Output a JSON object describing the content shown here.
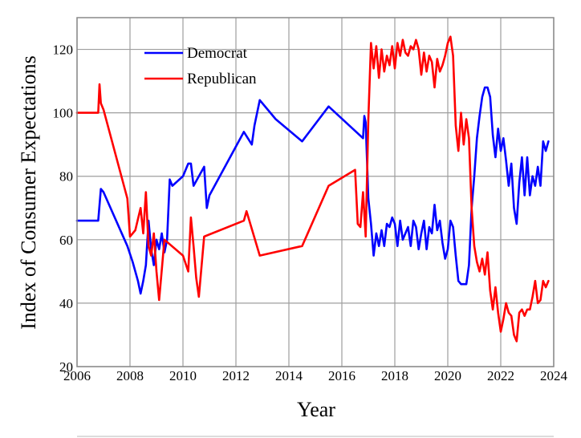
{
  "chart_data": {
    "type": "line",
    "xlabel": "Year",
    "ylabel": "Index of Consumer Expectations",
    "xlim": [
      2006,
      2024
    ],
    "ylim": [
      20,
      130
    ],
    "xticks": [
      2006,
      2008,
      2010,
      2012,
      2014,
      2016,
      2018,
      2020,
      2022,
      2024
    ],
    "yticks": [
      20,
      40,
      60,
      80,
      100,
      120
    ],
    "grid": true,
    "legend_position": "top-left",
    "series": [
      {
        "name": "Democrat",
        "color": "#0000ff",
        "points": [
          [
            2006.0,
            66
          ],
          [
            2006.8,
            66
          ],
          [
            2006.9,
            76
          ],
          [
            2007.0,
            75
          ],
          [
            2007.9,
            58
          ],
          [
            2008.1,
            53
          ],
          [
            2008.3,
            47
          ],
          [
            2008.4,
            43
          ],
          [
            2008.5,
            47
          ],
          [
            2008.6,
            52
          ],
          [
            2008.7,
            66
          ],
          [
            2008.8,
            57
          ],
          [
            2008.9,
            52
          ],
          [
            2009.0,
            60
          ],
          [
            2009.1,
            57
          ],
          [
            2009.2,
            62
          ],
          [
            2009.3,
            56
          ],
          [
            2009.4,
            60
          ],
          [
            2009.5,
            79
          ],
          [
            2009.6,
            77
          ],
          [
            2010.0,
            80
          ],
          [
            2010.2,
            84
          ],
          [
            2010.3,
            84
          ],
          [
            2010.4,
            77
          ],
          [
            2010.6,
            80
          ],
          [
            2010.8,
            83
          ],
          [
            2010.9,
            70
          ],
          [
            2011.0,
            74
          ],
          [
            2012.3,
            94
          ],
          [
            2012.6,
            90
          ],
          [
            2012.7,
            96
          ],
          [
            2012.9,
            104
          ],
          [
            2013.5,
            98
          ],
          [
            2014.5,
            91
          ],
          [
            2015.5,
            102
          ],
          [
            2016.8,
            92
          ],
          [
            2016.85,
            99
          ],
          [
            2016.9,
            97
          ],
          [
            2017.0,
            73
          ],
          [
            2017.1,
            65
          ],
          [
            2017.2,
            55
          ],
          [
            2017.3,
            62
          ],
          [
            2017.4,
            58
          ],
          [
            2017.5,
            63
          ],
          [
            2017.6,
            58
          ],
          [
            2017.7,
            65
          ],
          [
            2017.8,
            64
          ],
          [
            2017.9,
            67
          ],
          [
            2018.0,
            65
          ],
          [
            2018.1,
            58
          ],
          [
            2018.2,
            66
          ],
          [
            2018.3,
            60
          ],
          [
            2018.4,
            62
          ],
          [
            2018.5,
            64
          ],
          [
            2018.6,
            58
          ],
          [
            2018.7,
            66
          ],
          [
            2018.8,
            64
          ],
          [
            2018.9,
            57
          ],
          [
            2019.0,
            62
          ],
          [
            2019.1,
            66
          ],
          [
            2019.2,
            57
          ],
          [
            2019.3,
            64
          ],
          [
            2019.4,
            62
          ],
          [
            2019.5,
            71
          ],
          [
            2019.6,
            63
          ],
          [
            2019.7,
            66
          ],
          [
            2019.8,
            59
          ],
          [
            2019.9,
            54
          ],
          [
            2020.0,
            57
          ],
          [
            2020.1,
            66
          ],
          [
            2020.2,
            64
          ],
          [
            2020.3,
            55
          ],
          [
            2020.4,
            47
          ],
          [
            2020.5,
            46
          ],
          [
            2020.6,
            46
          ],
          [
            2020.7,
            46
          ],
          [
            2020.8,
            52
          ],
          [
            2020.9,
            70
          ],
          [
            2021.0,
            80
          ],
          [
            2021.1,
            92
          ],
          [
            2021.2,
            99
          ],
          [
            2021.3,
            105
          ],
          [
            2021.4,
            108
          ],
          [
            2021.5,
            108
          ],
          [
            2021.6,
            105
          ],
          [
            2021.7,
            93
          ],
          [
            2021.8,
            86
          ],
          [
            2021.9,
            95
          ],
          [
            2022.0,
            88
          ],
          [
            2022.1,
            92
          ],
          [
            2022.2,
            85
          ],
          [
            2022.3,
            77
          ],
          [
            2022.4,
            84
          ],
          [
            2022.5,
            70
          ],
          [
            2022.6,
            65
          ],
          [
            2022.7,
            78
          ],
          [
            2022.8,
            86
          ],
          [
            2022.9,
            74
          ],
          [
            2023.0,
            86
          ],
          [
            2023.1,
            74
          ],
          [
            2023.2,
            80
          ],
          [
            2023.3,
            77
          ],
          [
            2023.4,
            83
          ],
          [
            2023.5,
            77
          ],
          [
            2023.6,
            91
          ],
          [
            2023.7,
            88
          ],
          [
            2023.8,
            91
          ]
        ]
      },
      {
        "name": "Republican",
        "color": "#ff0000",
        "points": [
          [
            2006.0,
            100
          ],
          [
            2006.8,
            100
          ],
          [
            2006.85,
            109
          ],
          [
            2006.9,
            103
          ],
          [
            2007.0,
            101
          ],
          [
            2007.9,
            73
          ],
          [
            2008.0,
            61
          ],
          [
            2008.2,
            63
          ],
          [
            2008.4,
            70
          ],
          [
            2008.5,
            62
          ],
          [
            2008.6,
            75
          ],
          [
            2008.7,
            58
          ],
          [
            2008.8,
            55
          ],
          [
            2008.9,
            62
          ],
          [
            2009.0,
            50
          ],
          [
            2009.1,
            41
          ],
          [
            2009.3,
            60
          ],
          [
            2010.0,
            55
          ],
          [
            2010.2,
            50
          ],
          [
            2010.3,
            67
          ],
          [
            2010.4,
            58
          ],
          [
            2010.5,
            48
          ],
          [
            2010.6,
            42
          ],
          [
            2010.8,
            61
          ],
          [
            2012.3,
            66
          ],
          [
            2012.4,
            69
          ],
          [
            2012.9,
            55
          ],
          [
            2014.5,
            58
          ],
          [
            2015.5,
            77
          ],
          [
            2016.5,
            82
          ],
          [
            2016.6,
            65
          ],
          [
            2016.7,
            64
          ],
          [
            2016.8,
            75
          ],
          [
            2016.9,
            61
          ],
          [
            2017.0,
            98
          ],
          [
            2017.1,
            122
          ],
          [
            2017.2,
            114
          ],
          [
            2017.3,
            121
          ],
          [
            2017.4,
            111
          ],
          [
            2017.5,
            120
          ],
          [
            2017.6,
            113
          ],
          [
            2017.7,
            118
          ],
          [
            2017.8,
            115
          ],
          [
            2017.9,
            121
          ],
          [
            2018.0,
            114
          ],
          [
            2018.1,
            122
          ],
          [
            2018.2,
            118
          ],
          [
            2018.3,
            123
          ],
          [
            2018.4,
            119
          ],
          [
            2018.5,
            118
          ],
          [
            2018.6,
            121
          ],
          [
            2018.7,
            120
          ],
          [
            2018.8,
            123
          ],
          [
            2018.9,
            120
          ],
          [
            2019.0,
            112
          ],
          [
            2019.1,
            119
          ],
          [
            2019.2,
            113
          ],
          [
            2019.3,
            118
          ],
          [
            2019.4,
            116
          ],
          [
            2019.5,
            108
          ],
          [
            2019.6,
            117
          ],
          [
            2019.7,
            113
          ],
          [
            2019.8,
            115
          ],
          [
            2019.9,
            118
          ],
          [
            2020.0,
            122
          ],
          [
            2020.1,
            124
          ],
          [
            2020.2,
            118
          ],
          [
            2020.3,
            96
          ],
          [
            2020.4,
            88
          ],
          [
            2020.5,
            100
          ],
          [
            2020.6,
            90
          ],
          [
            2020.7,
            98
          ],
          [
            2020.8,
            92
          ],
          [
            2020.9,
            70
          ],
          [
            2021.0,
            58
          ],
          [
            2021.1,
            53
          ],
          [
            2021.2,
            50
          ],
          [
            2021.3,
            54
          ],
          [
            2021.4,
            49
          ],
          [
            2021.5,
            56
          ],
          [
            2021.6,
            44
          ],
          [
            2021.7,
            38
          ],
          [
            2021.8,
            45
          ],
          [
            2021.9,
            37
          ],
          [
            2022.0,
            31
          ],
          [
            2022.1,
            35
          ],
          [
            2022.2,
            40
          ],
          [
            2022.3,
            37
          ],
          [
            2022.4,
            36
          ],
          [
            2022.5,
            30
          ],
          [
            2022.6,
            28
          ],
          [
            2022.7,
            37
          ],
          [
            2022.8,
            38
          ],
          [
            2022.9,
            36
          ],
          [
            2023.0,
            38
          ],
          [
            2023.1,
            38
          ],
          [
            2023.2,
            42
          ],
          [
            2023.3,
            47
          ],
          [
            2023.4,
            40
          ],
          [
            2023.5,
            41
          ],
          [
            2023.6,
            47
          ],
          [
            2023.7,
            45
          ],
          [
            2023.8,
            47
          ]
        ]
      }
    ]
  }
}
